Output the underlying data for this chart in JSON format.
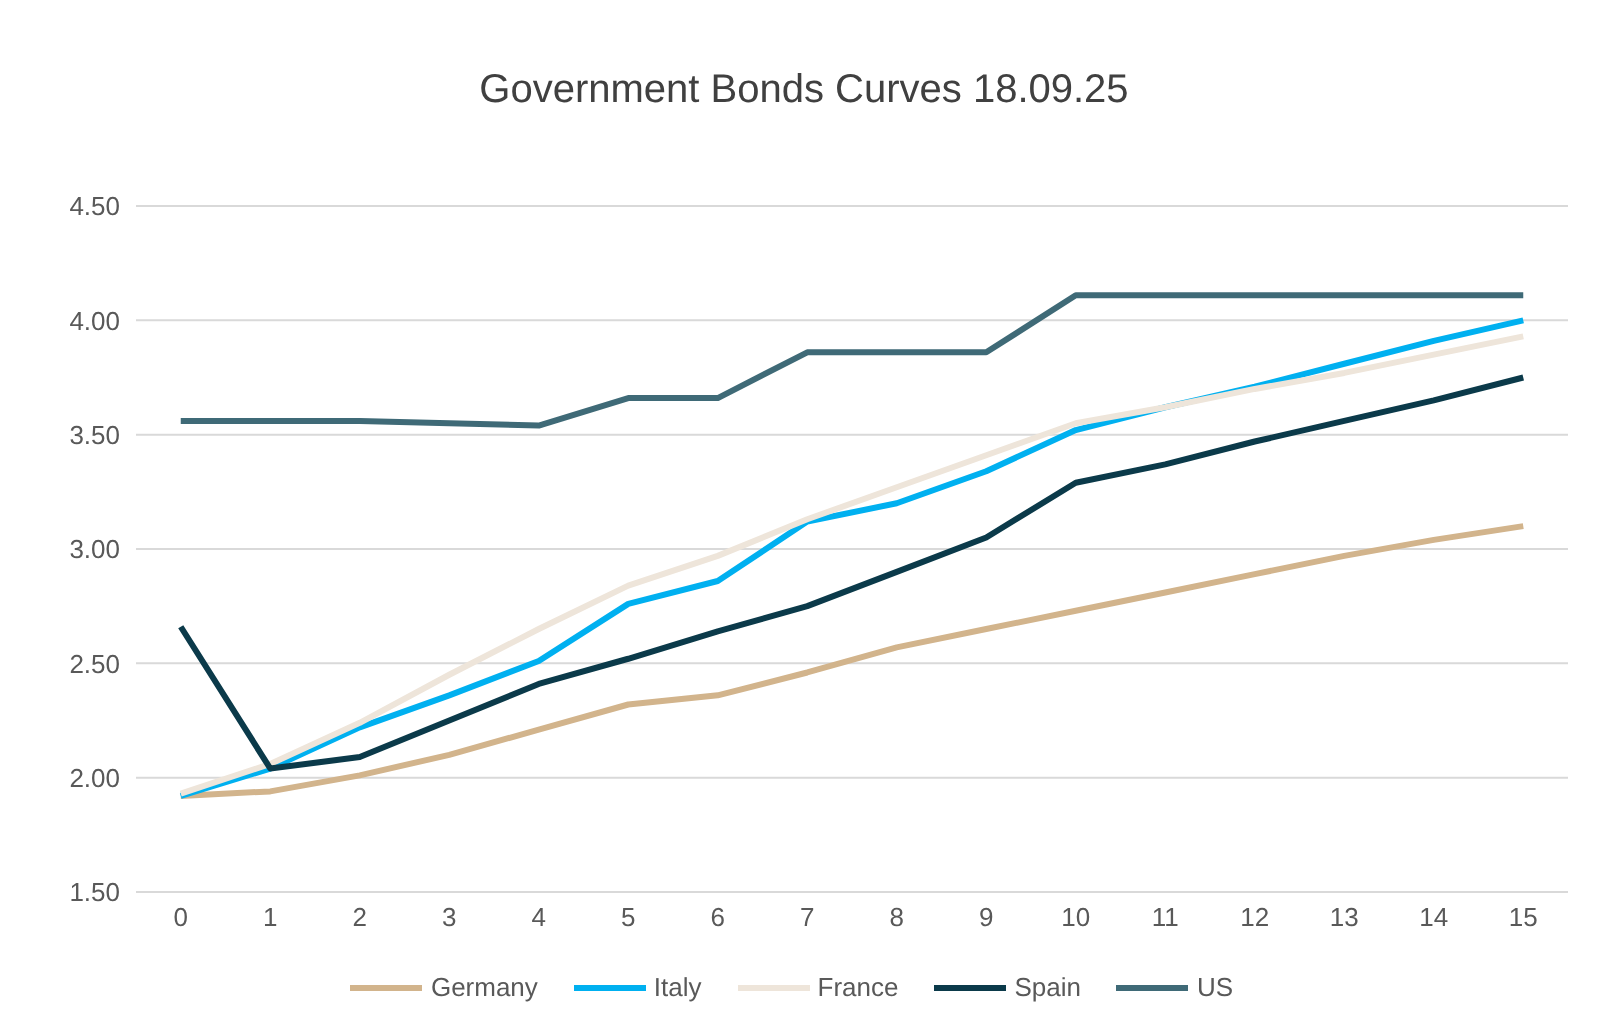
{
  "chart_data": {
    "type": "line",
    "title": "Government Bonds Curves 18.09.25",
    "x": [
      0,
      1,
      2,
      3,
      4,
      5,
      6,
      7,
      8,
      9,
      10,
      11,
      12,
      13,
      14,
      15
    ],
    "series": [
      {
        "name": "Germany",
        "color": "#d2b48c",
        "values": [
          1.92,
          1.94,
          2.01,
          2.1,
          2.21,
          2.32,
          2.36,
          2.46,
          2.57,
          2.65,
          2.73,
          2.81,
          2.89,
          2.97,
          3.04,
          3.1
        ]
      },
      {
        "name": "Italy",
        "color": "#00b0f0",
        "values": [
          1.92,
          2.04,
          2.22,
          2.36,
          2.51,
          2.76,
          2.86,
          3.12,
          3.2,
          3.34,
          3.52,
          3.62,
          3.71,
          3.81,
          3.91,
          4.0
        ]
      },
      {
        "name": "France",
        "color": "#eee5da",
        "values": [
          1.93,
          2.06,
          2.24,
          2.45,
          2.65,
          2.84,
          2.97,
          3.13,
          3.27,
          3.41,
          3.55,
          3.62,
          3.7,
          3.77,
          3.85,
          3.93
        ]
      },
      {
        "name": "Spain",
        "color": "#0b3a4a",
        "values": [
          2.66,
          2.04,
          2.09,
          2.25,
          2.41,
          2.52,
          2.64,
          2.75,
          2.9,
          3.05,
          3.29,
          3.37,
          3.47,
          3.56,
          3.65,
          3.75
        ]
      },
      {
        "name": "US",
        "color": "#3f6a77",
        "values": [
          3.56,
          3.56,
          3.56,
          3.55,
          3.54,
          3.66,
          3.66,
          3.86,
          3.86,
          3.86,
          4.11,
          4.11,
          4.11,
          4.11,
          4.11,
          4.11
        ]
      }
    ],
    "xlim": [
      -0.5,
      15.5
    ],
    "xticks": [
      0,
      1,
      2,
      3,
      4,
      5,
      6,
      7,
      8,
      9,
      10,
      11,
      12,
      13,
      14,
      15
    ],
    "ylim": [
      1.5,
      4.5
    ],
    "yticks": [
      {
        "value": 1.5,
        "label": "1.50"
      },
      {
        "value": 2,
        "label": "2.00"
      },
      {
        "value": 2.5,
        "label": "2.50"
      },
      {
        "value": 3,
        "label": "3.00"
      },
      {
        "value": 3.5,
        "label": "3.50"
      },
      {
        "value": 4,
        "label": "4.00"
      },
      {
        "value": 4.5,
        "label": "4.50"
      }
    ],
    "grid": "y",
    "legend": "bottom",
    "marker": "none",
    "line_style": "solid"
  }
}
